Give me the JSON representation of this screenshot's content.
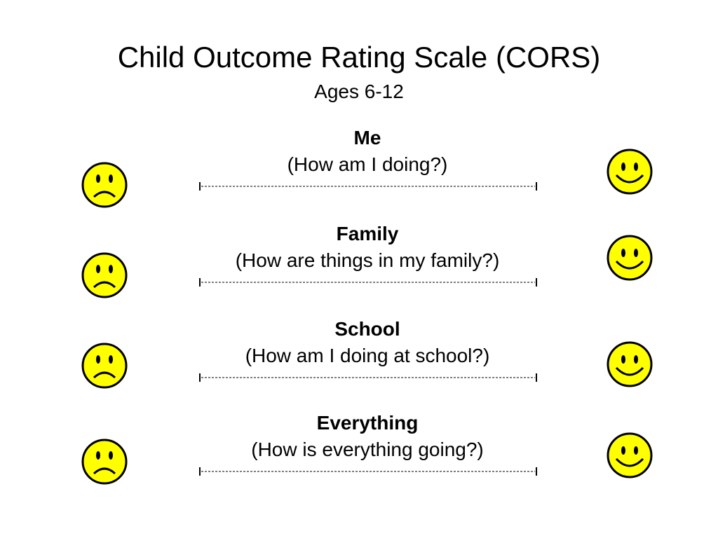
{
  "title": "Child Outcome Rating Scale (CORS)",
  "subtitle": "Ages 6-12",
  "colors": {
    "face_fill": "#ffff00",
    "face_stroke": "#000000"
  },
  "icons": {
    "left": "sad-face-icon",
    "right": "happy-face-icon"
  },
  "items": [
    {
      "label": "Me",
      "question": "(How am I doing?)"
    },
    {
      "label": "Family",
      "question": "(How are things in my family?)"
    },
    {
      "label": "School",
      "question": "(How am I doing at school?)"
    },
    {
      "label": "Everything",
      "question": "(How is everything going?)"
    }
  ]
}
